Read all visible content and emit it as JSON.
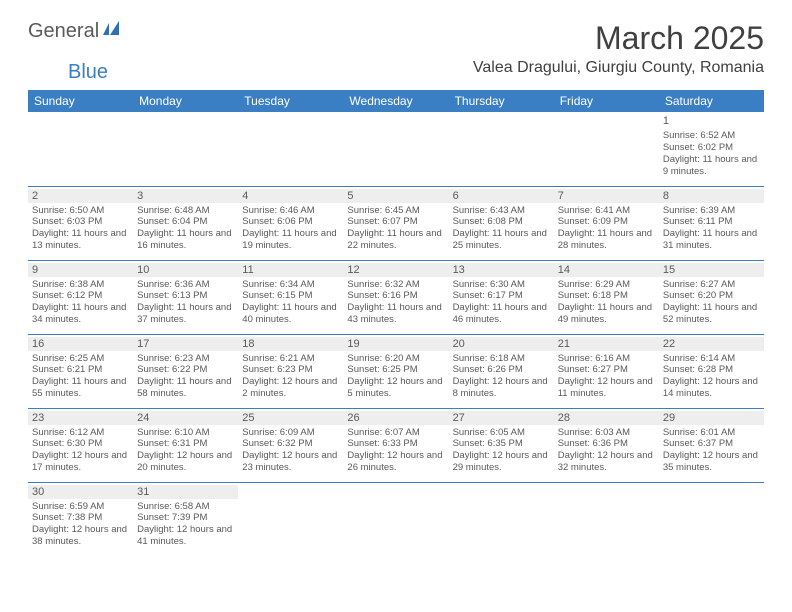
{
  "logo": {
    "part1": "General",
    "part2": "Blue"
  },
  "title": "March 2025",
  "location": "Valea Dragului, Giurgiu County, Romania",
  "colors": {
    "header_bg": "#3a7fc4",
    "header_text": "#ffffff",
    "text": "#5a5a5a",
    "title_text": "#404040",
    "daynum_bg": "#eeeeee",
    "border": "#3a7fc4"
  },
  "day_headers": [
    "Sunday",
    "Monday",
    "Tuesday",
    "Wednesday",
    "Thursday",
    "Friday",
    "Saturday"
  ],
  "weeks": [
    [
      null,
      null,
      null,
      null,
      null,
      null,
      {
        "n": "1",
        "sr": "6:52 AM",
        "ss": "6:02 PM",
        "dl": "11 hours and 9 minutes."
      }
    ],
    [
      {
        "n": "2",
        "sr": "6:50 AM",
        "ss": "6:03 PM",
        "dl": "11 hours and 13 minutes."
      },
      {
        "n": "3",
        "sr": "6:48 AM",
        "ss": "6:04 PM",
        "dl": "11 hours and 16 minutes."
      },
      {
        "n": "4",
        "sr": "6:46 AM",
        "ss": "6:06 PM",
        "dl": "11 hours and 19 minutes."
      },
      {
        "n": "5",
        "sr": "6:45 AM",
        "ss": "6:07 PM",
        "dl": "11 hours and 22 minutes."
      },
      {
        "n": "6",
        "sr": "6:43 AM",
        "ss": "6:08 PM",
        "dl": "11 hours and 25 minutes."
      },
      {
        "n": "7",
        "sr": "6:41 AM",
        "ss": "6:09 PM",
        "dl": "11 hours and 28 minutes."
      },
      {
        "n": "8",
        "sr": "6:39 AM",
        "ss": "6:11 PM",
        "dl": "11 hours and 31 minutes."
      }
    ],
    [
      {
        "n": "9",
        "sr": "6:38 AM",
        "ss": "6:12 PM",
        "dl": "11 hours and 34 minutes."
      },
      {
        "n": "10",
        "sr": "6:36 AM",
        "ss": "6:13 PM",
        "dl": "11 hours and 37 minutes."
      },
      {
        "n": "11",
        "sr": "6:34 AM",
        "ss": "6:15 PM",
        "dl": "11 hours and 40 minutes."
      },
      {
        "n": "12",
        "sr": "6:32 AM",
        "ss": "6:16 PM",
        "dl": "11 hours and 43 minutes."
      },
      {
        "n": "13",
        "sr": "6:30 AM",
        "ss": "6:17 PM",
        "dl": "11 hours and 46 minutes."
      },
      {
        "n": "14",
        "sr": "6:29 AM",
        "ss": "6:18 PM",
        "dl": "11 hours and 49 minutes."
      },
      {
        "n": "15",
        "sr": "6:27 AM",
        "ss": "6:20 PM",
        "dl": "11 hours and 52 minutes."
      }
    ],
    [
      {
        "n": "16",
        "sr": "6:25 AM",
        "ss": "6:21 PM",
        "dl": "11 hours and 55 minutes."
      },
      {
        "n": "17",
        "sr": "6:23 AM",
        "ss": "6:22 PM",
        "dl": "11 hours and 58 minutes."
      },
      {
        "n": "18",
        "sr": "6:21 AM",
        "ss": "6:23 PM",
        "dl": "12 hours and 2 minutes."
      },
      {
        "n": "19",
        "sr": "6:20 AM",
        "ss": "6:25 PM",
        "dl": "12 hours and 5 minutes."
      },
      {
        "n": "20",
        "sr": "6:18 AM",
        "ss": "6:26 PM",
        "dl": "12 hours and 8 minutes."
      },
      {
        "n": "21",
        "sr": "6:16 AM",
        "ss": "6:27 PM",
        "dl": "12 hours and 11 minutes."
      },
      {
        "n": "22",
        "sr": "6:14 AM",
        "ss": "6:28 PM",
        "dl": "12 hours and 14 minutes."
      }
    ],
    [
      {
        "n": "23",
        "sr": "6:12 AM",
        "ss": "6:30 PM",
        "dl": "12 hours and 17 minutes."
      },
      {
        "n": "24",
        "sr": "6:10 AM",
        "ss": "6:31 PM",
        "dl": "12 hours and 20 minutes."
      },
      {
        "n": "25",
        "sr": "6:09 AM",
        "ss": "6:32 PM",
        "dl": "12 hours and 23 minutes."
      },
      {
        "n": "26",
        "sr": "6:07 AM",
        "ss": "6:33 PM",
        "dl": "12 hours and 26 minutes."
      },
      {
        "n": "27",
        "sr": "6:05 AM",
        "ss": "6:35 PM",
        "dl": "12 hours and 29 minutes."
      },
      {
        "n": "28",
        "sr": "6:03 AM",
        "ss": "6:36 PM",
        "dl": "12 hours and 32 minutes."
      },
      {
        "n": "29",
        "sr": "6:01 AM",
        "ss": "6:37 PM",
        "dl": "12 hours and 35 minutes."
      }
    ],
    [
      {
        "n": "30",
        "sr": "6:59 AM",
        "ss": "7:38 PM",
        "dl": "12 hours and 38 minutes."
      },
      {
        "n": "31",
        "sr": "6:58 AM",
        "ss": "7:39 PM",
        "dl": "12 hours and 41 minutes."
      },
      null,
      null,
      null,
      null,
      null
    ]
  ],
  "labels": {
    "sunrise": "Sunrise:",
    "sunset": "Sunset:",
    "daylight": "Daylight:"
  }
}
